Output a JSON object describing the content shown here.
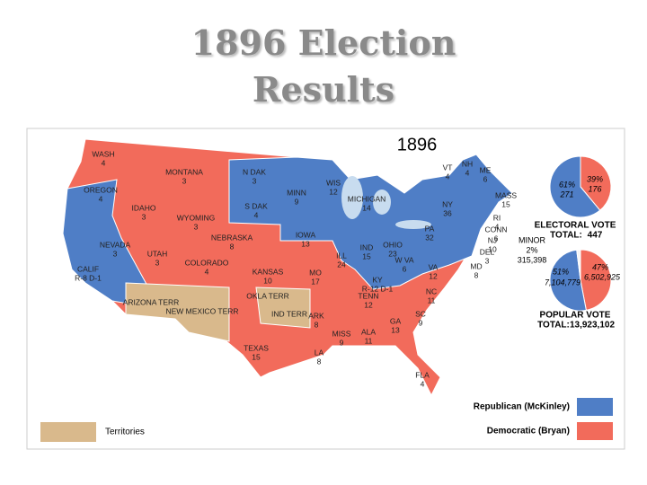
{
  "title": "1896 Election Results",
  "map": {
    "year": "1896",
    "states": [
      {
        "name": "WASH",
        "votes": "4"
      },
      {
        "name": "MONTANA",
        "votes": "3"
      },
      {
        "name": "N DAK",
        "votes": "3"
      },
      {
        "name": "MINN",
        "votes": "9"
      },
      {
        "name": "OREGON",
        "votes": "4"
      },
      {
        "name": "IDAHO",
        "votes": "3"
      },
      {
        "name": "WYOMING",
        "votes": "3"
      },
      {
        "name": "S DAK",
        "votes": "4"
      },
      {
        "name": "WIS",
        "votes": "12"
      },
      {
        "name": "MICHIGAN",
        "votes": "14"
      },
      {
        "name": "NY",
        "votes": "36"
      },
      {
        "name": "VT",
        "votes": "4"
      },
      {
        "name": "NH",
        "votes": "4"
      },
      {
        "name": "ME",
        "votes": "6"
      },
      {
        "name": "MASS",
        "votes": "15"
      },
      {
        "name": "RI",
        "votes": "4"
      },
      {
        "name": "CONN",
        "votes": "6"
      },
      {
        "name": "NJ",
        "votes": "10"
      },
      {
        "name": "DEL",
        "votes": "3"
      },
      {
        "name": "MD",
        "votes": "8"
      },
      {
        "name": "PA",
        "votes": "32"
      },
      {
        "name": "OHIO",
        "votes": "23"
      },
      {
        "name": "IND",
        "votes": "15"
      },
      {
        "name": "ILL",
        "votes": "24"
      },
      {
        "name": "IOWA",
        "votes": "13"
      },
      {
        "name": "NEBRASKA",
        "votes": "8"
      },
      {
        "name": "NEVADA",
        "votes": "3"
      },
      {
        "name": "UTAH",
        "votes": "3"
      },
      {
        "name": "COLORADO",
        "votes": "4"
      },
      {
        "name": "KANSAS",
        "votes": "10"
      },
      {
        "name": "MO",
        "votes": "17"
      },
      {
        "name": "CALIF",
        "votes": "R-8 D-1"
      },
      {
        "name": "KY",
        "votes": "R-12 D-1"
      },
      {
        "name": "W VA",
        "votes": "6"
      },
      {
        "name": "VA",
        "votes": "12"
      },
      {
        "name": "NC",
        "votes": "11"
      },
      {
        "name": "TENN",
        "votes": "12"
      },
      {
        "name": "SC",
        "votes": "9"
      },
      {
        "name": "GA",
        "votes": "13"
      },
      {
        "name": "ALA",
        "votes": "11"
      },
      {
        "name": "MISS",
        "votes": "9"
      },
      {
        "name": "LA",
        "votes": "8"
      },
      {
        "name": "ARK",
        "votes": "8"
      },
      {
        "name": "TEXAS",
        "votes": "15"
      },
      {
        "name": "FLA",
        "votes": "4"
      }
    ],
    "territories": [
      "ARIZONA TERR",
      "NEW MEXICO TERR",
      "OKLA TERR",
      "IND TERR"
    ]
  },
  "electoral_vote": {
    "heading": "ELECTORAL VOTE",
    "total_label": "TOTAL:",
    "total": "447",
    "values": [
      61,
      39
    ],
    "value_labels": [
      "61%",
      "39%"
    ],
    "votes": [
      "271",
      "176"
    ]
  },
  "popular_vote": {
    "heading": "POPULAR VOTE",
    "total_label": "TOTAL:",
    "total": "13,923,102",
    "minor_label": "MINOR",
    "values": [
      51,
      47,
      2
    ],
    "value_labels": [
      "51%",
      "47%",
      "2%"
    ],
    "votes": [
      "7,104,779",
      "6,502,925",
      "315,398"
    ]
  },
  "legend": [
    {
      "name": "Republican (McKinley)",
      "color": "#4f7ec6"
    },
    {
      "name": "Democratic (Bryan)",
      "color": "#f26b5b"
    },
    {
      "name": "Territories",
      "color": "#d9b98c"
    }
  ]
}
